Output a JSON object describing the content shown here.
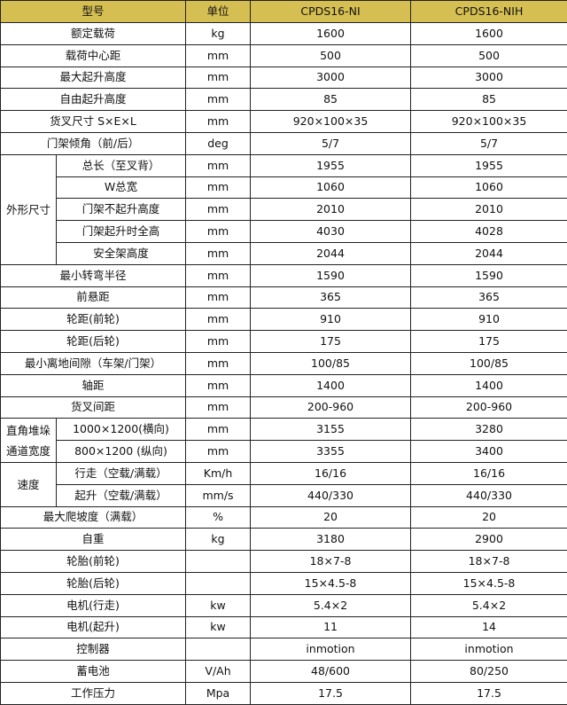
{
  "header": {
    "param": "型号",
    "unit": "单位",
    "model1": "CPDS16-NI",
    "model2": "CPDS16-NIH"
  },
  "colors": {
    "header_bg": "#d5bf52",
    "border": "#222222"
  },
  "rows": [
    {
      "label": "额定载荷",
      "unit": "kg",
      "v1": "1600",
      "v2": "1600"
    },
    {
      "label": "载荷中心距",
      "unit": "mm",
      "v1": "500",
      "v2": "500"
    },
    {
      "label": "最大起升高度",
      "unit": "mm",
      "v1": "3000",
      "v2": "3000"
    },
    {
      "label": "自由起升高度",
      "unit": "mm",
      "v1": "85",
      "v2": "85"
    },
    {
      "label": "货叉尺寸  S×E×L",
      "unit": "mm",
      "v1": "920×100×35",
      "v2": "920×100×35"
    },
    {
      "label": "门架倾角（前/后）",
      "unit": "deg",
      "v1": "5/7",
      "v2": "5/7"
    },
    {
      "group": "外形尺寸",
      "groupSize": 5,
      "label": "总长（至叉背）",
      "unit": "mm",
      "v1": "1955",
      "v2": "1955"
    },
    {
      "label": "W总宽",
      "unit": "mm",
      "v1": "1060",
      "v2": "1060",
      "inGroup": true
    },
    {
      "label": "门架不起升高度",
      "unit": "mm",
      "v1": "2010",
      "v2": "2010",
      "inGroup": true
    },
    {
      "label": "门架起升时全高",
      "unit": "mm",
      "v1": "4030",
      "v2": "4028",
      "inGroup": true
    },
    {
      "label": "安全架高度",
      "unit": "mm",
      "v1": "2044",
      "v2": "2044",
      "inGroup": true
    },
    {
      "label": "最小转弯半径",
      "unit": "mm",
      "v1": "1590",
      "v2": "1590"
    },
    {
      "label": "前悬距",
      "unit": "mm",
      "v1": "365",
      "v2": "365"
    },
    {
      "label": "轮距(前轮)",
      "unit": "mm",
      "v1": "910",
      "v2": "910"
    },
    {
      "label": "轮距(后轮)",
      "unit": "mm",
      "v1": "175",
      "v2": "175"
    },
    {
      "label": "最小离地间隙（车架/门架）",
      "unit": "mm",
      "v1": "100/85",
      "v2": "100/85"
    },
    {
      "label": "轴距",
      "unit": "mm",
      "v1": "1400",
      "v2": "1400"
    },
    {
      "label": "货叉间距",
      "unit": "mm",
      "v1": "200-960",
      "v2": "200-960"
    },
    {
      "group": "直角堆垛通道宽度",
      "groupSize": 2,
      "label": "1000×1200(横向)",
      "unit": "mm",
      "v1": "3155",
      "v2": "3280"
    },
    {
      "label": "800×1200 (纵向)",
      "unit": "mm",
      "v1": "3355",
      "v2": "3400",
      "inGroup": true
    },
    {
      "group": "速度",
      "groupSize": 2,
      "label": "行走（空载/满载）",
      "unit": "Km/h",
      "v1": "16/16",
      "v2": "16/16"
    },
    {
      "label": "起升（空载/满载）",
      "unit": "mm/s",
      "v1": "440/330",
      "v2": "440/330",
      "inGroup": true
    },
    {
      "label": "最大爬坡度（满载）",
      "unit": "%",
      "v1": "20",
      "v2": "20"
    },
    {
      "label": "自重",
      "unit": "kg",
      "v1": "3180",
      "v2": "2900"
    },
    {
      "label": "轮胎(前轮)",
      "unit": "",
      "v1": "18×7-8",
      "v2": "18×7-8"
    },
    {
      "label": "轮胎(后轮)",
      "unit": "",
      "v1": "15×4.5-8",
      "v2": "15×4.5-8"
    },
    {
      "label": "电机(行走)",
      "unit": "kw",
      "v1": "5.4×2",
      "v2": "5.4×2"
    },
    {
      "label": "电机(起升)",
      "unit": "kw",
      "v1": "11",
      "v2": "14"
    },
    {
      "label": "控制器",
      "unit": "",
      "v1": "inmotion",
      "v2": "inmotion"
    },
    {
      "label": "蓄电池",
      "unit": "V/Ah",
      "v1": "48/600",
      "v2": "80/250"
    },
    {
      "label": "工作压力",
      "unit": "Mpa",
      "v1": "17.5",
      "v2": "17.5"
    }
  ]
}
